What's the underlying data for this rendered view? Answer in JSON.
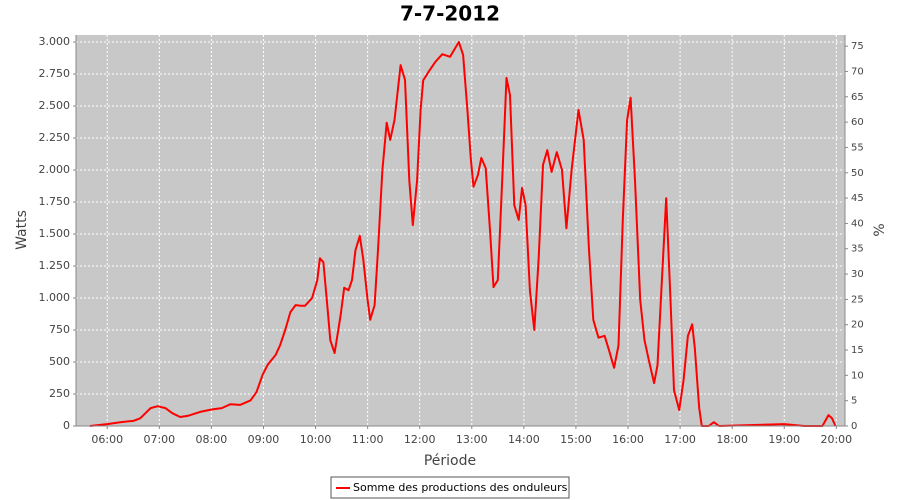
{
  "chart_data": {
    "type": "line",
    "title": "7-7-2012",
    "x_label": "Période",
    "y_label": "Watts",
    "y2_label": "%",
    "x": [
      "05:40",
      "06:00",
      "06:15",
      "06:30",
      "06:38",
      "06:50",
      "06:58",
      "07:07",
      "07:15",
      "07:24",
      "07:33",
      "07:47",
      "08:01",
      "08:12",
      "08:22",
      "08:33",
      "08:45",
      "08:52",
      "08:59",
      "09:05",
      "09:14",
      "09:19",
      "09:25",
      "09:31",
      "09:37",
      "09:43",
      "09:48",
      "09:56",
      "10:02",
      "10:05",
      "10:09",
      "10:14",
      "10:17",
      "10:22",
      "10:29",
      "10:33",
      "10:38",
      "10:42",
      "10:46",
      "10:51",
      "10:55",
      "11:00",
      "11:03",
      "11:08",
      "11:12",
      "11:17",
      "11:22",
      "11:26",
      "11:31",
      "11:38",
      "11:43",
      "11:48",
      "11:52",
      "11:57",
      "12:01",
      "12:04",
      "12:10",
      "12:18",
      "12:26",
      "12:35",
      "12:45",
      "12:50",
      "12:55",
      "12:59",
      "13:02",
      "13:07",
      "13:11",
      "13:16",
      "13:21",
      "13:25",
      "13:30",
      "13:35",
      "13:40",
      "13:44",
      "13:49",
      "13:54",
      "13:58",
      "14:02",
      "14:07",
      "14:12",
      "14:17",
      "14:22",
      "14:27",
      "14:32",
      "14:38",
      "14:44",
      "14:49",
      "14:55",
      "15:03",
      "15:09",
      "15:15",
      "15:20",
      "15:26",
      "15:33",
      "15:38",
      "15:44",
      "15:49",
      "15:54",
      "15:59",
      "16:03",
      "16:08",
      "16:14",
      "16:19",
      "16:24",
      "16:30",
      "16:34",
      "16:39",
      "16:44",
      "16:49",
      "16:53",
      "16:59",
      "17:04",
      "17:09",
      "17:14",
      "17:17",
      "17:22",
      "17:25",
      "17:33",
      "17:39",
      "17:45",
      "19:00",
      "19:23",
      "19:44",
      "19:51",
      "19:55",
      "19:59"
    ],
    "series": [
      {
        "name": "Somme des productions des onduleurs",
        "color": "#ff0000",
        "values": [
          0,
          15,
          30,
          40,
          60,
          140,
          155,
          140,
          100,
          70,
          80,
          110,
          130,
          140,
          170,
          165,
          200,
          265,
          400,
          480,
          555,
          630,
          750,
          890,
          945,
          940,
          940,
          1000,
          1140,
          1310,
          1280,
          905,
          670,
          570,
          870,
          1080,
          1060,
          1140,
          1375,
          1485,
          1300,
          985,
          830,
          945,
          1375,
          2000,
          2370,
          2235,
          2390,
          2820,
          2705,
          1920,
          1570,
          1920,
          2470,
          2700,
          2765,
          2845,
          2905,
          2885,
          3000,
          2900,
          2470,
          2080,
          1870,
          1960,
          2095,
          2015,
          1530,
          1085,
          1140,
          1920,
          2720,
          2585,
          1725,
          1610,
          1860,
          1725,
          1060,
          750,
          1300,
          2040,
          2155,
          1985,
          2140,
          2000,
          1545,
          2000,
          2470,
          2235,
          1375,
          830,
          690,
          705,
          595,
          455,
          630,
          1610,
          2390,
          2565,
          1920,
          985,
          670,
          515,
          335,
          475,
          1140,
          1780,
          985,
          280,
          125,
          360,
          705,
          795,
          610,
          140,
          0,
          0,
          30,
          0,
          15,
          0,
          0,
          85,
          60,
          0
        ]
      }
    ],
    "xlim": [
      "05:24",
      "20:10"
    ],
    "xticks": [
      "06:00",
      "07:00",
      "08:00",
      "09:00",
      "10:00",
      "11:00",
      "12:00",
      "13:00",
      "14:00",
      "15:00",
      "16:00",
      "17:00",
      "18:00",
      "19:00",
      "20:00"
    ],
    "ylim": [
      0,
      3055
    ],
    "yticks": [
      0,
      250,
      500,
      750,
      {
        "value": 1000,
        "label": "1.000"
      },
      {
        "value": 1250,
        "label": "1.250"
      },
      {
        "value": 1500,
        "label": "1.500"
      },
      {
        "value": 1750,
        "label": "1.750"
      },
      {
        "value": 2000,
        "label": "2.000"
      },
      {
        "value": 2250,
        "label": "2.250"
      },
      {
        "value": 2500,
        "label": "2.500"
      },
      {
        "value": 2750,
        "label": "2.750"
      },
      {
        "value": 3000,
        "label": "3.000"
      }
    ],
    "y2lim": [
      0,
      77.2
    ],
    "y2ticks": [
      0,
      5,
      10,
      15,
      20,
      25,
      30,
      35,
      40,
      45,
      50,
      55,
      60,
      65,
      70,
      75
    ],
    "grid": true,
    "legend": "bottom"
  }
}
